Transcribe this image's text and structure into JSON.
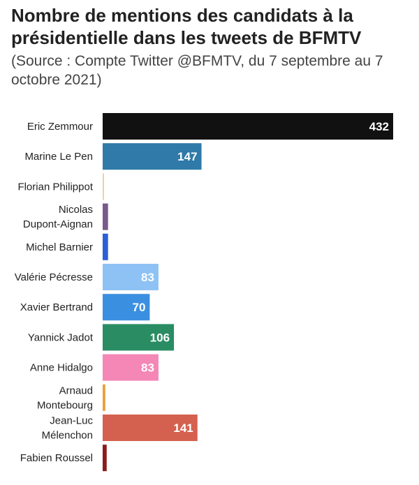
{
  "chart_data": {
    "type": "bar",
    "orientation": "horizontal",
    "title": "Nombre de mentions des candidats à la présidentielle dans les tweets de BFMTV",
    "subtitle": "(Source : Compte Twitter @BFMTV, du 7 septembre au 7 octobre 2021)",
    "categories": [
      [
        "Eric Zemmour"
      ],
      [
        "Marine Le Pen"
      ],
      [
        "Florian Philippot"
      ],
      [
        "Nicolas",
        "Dupont-Aignan"
      ],
      [
        "Michel Barnier"
      ],
      [
        "Valérie Pécresse"
      ],
      [
        "Xavier Bertrand"
      ],
      [
        "Yannick Jadot"
      ],
      [
        "Anne Hidalgo"
      ],
      [
        "Arnaud",
        "Montebourg"
      ],
      [
        "Jean-Luc",
        "Mélenchon"
      ],
      [
        "Fabien Roussel"
      ]
    ],
    "values": [
      432,
      147,
      1,
      8,
      8,
      83,
      70,
      106,
      83,
      4,
      141,
      6
    ],
    "data_labels": [
      "432",
      "147",
      "",
      "",
      "",
      "83",
      "70",
      "106",
      "83",
      "",
      "141",
      ""
    ],
    "colors": [
      "#111111",
      "#2f7aa8",
      "#e8d4a0",
      "#7a5a8c",
      "#2a5fd8",
      "#8ec2f5",
      "#3b8fe0",
      "#2a8c63",
      "#f487b6",
      "#e8a13a",
      "#d4614f",
      "#8b1c1c"
    ],
    "xlim": [
      0,
      432
    ],
    "grid": false,
    "legend": "none"
  }
}
